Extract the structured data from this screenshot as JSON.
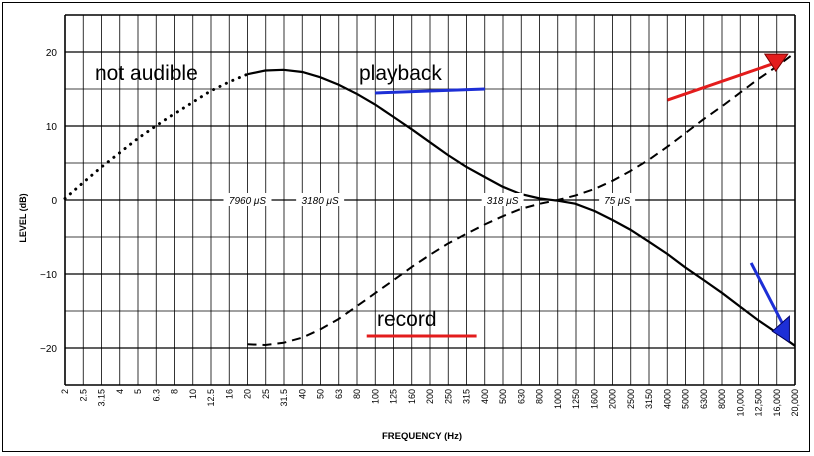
{
  "chart_data": {
    "type": "line",
    "xlabel": "FREQUENCY (Hz)",
    "ylabel": "LEVEL (dB)",
    "ylim": [
      -25,
      25
    ],
    "x_scale": "log",
    "y_ticks": [
      20,
      10,
      0,
      -10,
      -20
    ],
    "x_tick_labels": [
      "2",
      "2.5",
      "3.15",
      "4",
      "5",
      "6.3",
      "8",
      "10",
      "12.5",
      "16",
      "20",
      "25",
      "31.5",
      "40",
      "50",
      "63",
      "80",
      "100",
      "125",
      "160",
      "200",
      "250",
      "315",
      "400",
      "500",
      "630",
      "800",
      "1000",
      "1250",
      "1600",
      "2000",
      "2500",
      "3150",
      "4000",
      "5000",
      "6300",
      "8000",
      "10,000",
      "12,500",
      "16,000",
      "20,000"
    ],
    "grid": true,
    "series": [
      {
        "name": "playback",
        "style": "solid",
        "x": [
          20,
          25,
          31.5,
          40,
          50,
          63,
          80,
          100,
          125,
          160,
          200,
          250,
          315,
          400,
          500,
          630,
          800,
          1000,
          1250,
          1600,
          2000,
          2500,
          3150,
          4000,
          5000,
          6300,
          8000,
          10000,
          12500,
          16000,
          20000
        ],
        "y": [
          17.0,
          17.5,
          17.6,
          17.3,
          16.6,
          15.6,
          14.3,
          12.9,
          11.3,
          9.5,
          7.8,
          6.1,
          4.5,
          3.1,
          1.8,
          0.8,
          0.2,
          -0.1,
          -0.5,
          -1.5,
          -2.7,
          -4.0,
          -5.6,
          -7.3,
          -9.1,
          -10.8,
          -12.6,
          -14.4,
          -16.2,
          -18.0,
          -19.7
        ]
      },
      {
        "name": "not audible",
        "style": "dotted",
        "x": [
          2,
          2.5,
          3.15,
          4,
          5,
          6.3,
          8,
          10,
          12.5,
          16,
          20
        ],
        "y": [
          0.2,
          2.3,
          4.4,
          6.4,
          8.3,
          10.0,
          11.7,
          13.2,
          14.7,
          16.0,
          17.0
        ]
      },
      {
        "name": "record",
        "style": "dashed",
        "x": [
          20,
          25,
          31.5,
          40,
          50,
          63,
          80,
          100,
          125,
          160,
          200,
          250,
          315,
          400,
          500,
          630,
          800,
          1000,
          1250,
          1600,
          2000,
          2500,
          3150,
          4000,
          5000,
          6300,
          8000,
          10000,
          12500,
          16000,
          20000
        ],
        "y": [
          -19.5,
          -19.6,
          -19.3,
          -18.6,
          -17.5,
          -16.1,
          -14.3,
          -12.6,
          -10.9,
          -9.0,
          -7.4,
          -5.9,
          -4.6,
          -3.3,
          -2.2,
          -1.2,
          -0.5,
          0.0,
          0.6,
          1.5,
          2.6,
          3.9,
          5.4,
          7.2,
          9.0,
          10.9,
          12.7,
          14.5,
          16.3,
          18.1,
          19.9
        ]
      }
    ],
    "time_constants": [
      {
        "label": "7960 μS",
        "x": 20
      },
      {
        "label": "3180 μS",
        "x": 50
      },
      {
        "label": "318 μS",
        "x": 500
      },
      {
        "label": "75 μS",
        "x": 2120
      }
    ],
    "annotations": {
      "not_audible": "not audible",
      "playback": "playback",
      "record": "record"
    },
    "colors": {
      "axis": "#000000",
      "grid": "#000000",
      "arrow_red": "#e31c1c",
      "arrow_blue": "#1d2fd6",
      "underline_blue": "#1d2fd6",
      "underline_red": "#e31c1c"
    }
  }
}
